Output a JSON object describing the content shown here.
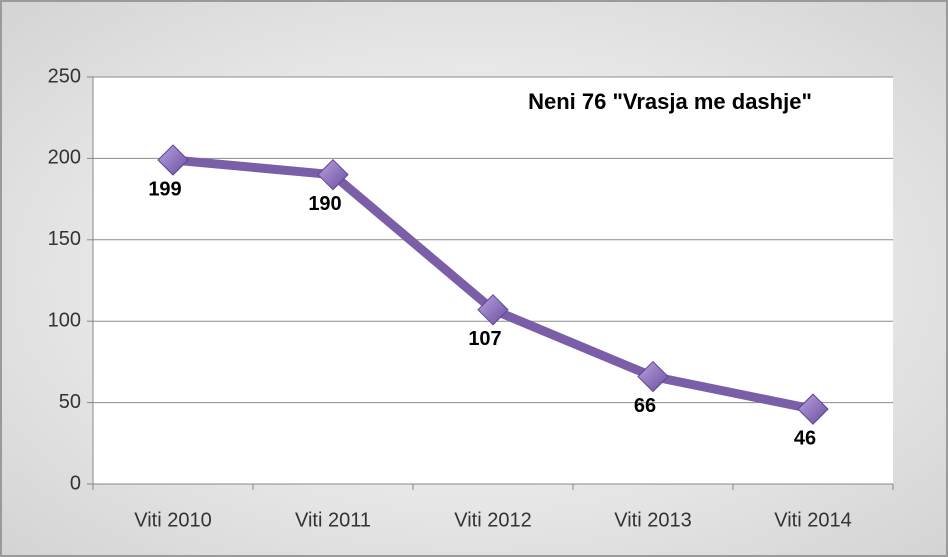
{
  "chart_data": {
    "type": "line",
    "title": "Neni  76 \"Vrasja me dashje\"",
    "categories": [
      "Viti 2010",
      "Viti 2011",
      "Viti 2012",
      "Viti 2013",
      "Viti 2014"
    ],
    "values": [
      199,
      190,
      107,
      66,
      46
    ],
    "color": "#7b5ea8",
    "ylim": [
      0,
      250
    ],
    "yticks": [
      0,
      50,
      100,
      150,
      200,
      250
    ],
    "grid": true
  }
}
